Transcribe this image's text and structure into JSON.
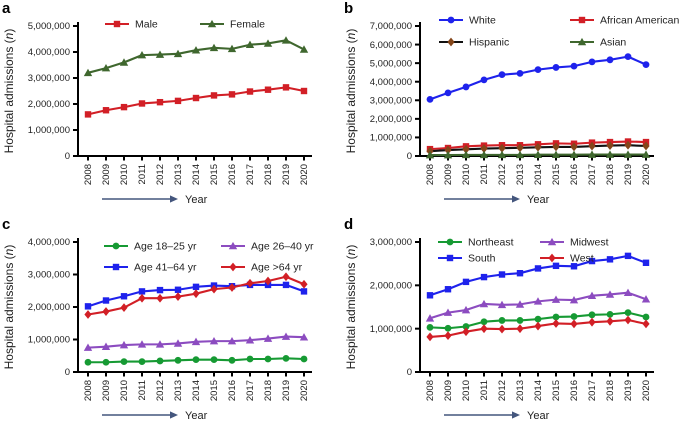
{
  "figure": {
    "ylabel": "Hospital admissions (n)",
    "xlabel": "Year"
  },
  "colors": {
    "red": "#d21f26",
    "blue": "#1e22ec",
    "dark_green": "#3f672e",
    "bright_green": "#169a33",
    "purple": "#8c4cc0",
    "brown": "#84461a",
    "black_line": "#111111",
    "axis": "#000000",
    "arrow": "#44567d",
    "text": "#222222"
  },
  "chart_data": [
    {
      "type": "line",
      "letter": "a",
      "title": "",
      "xlabel": "Year",
      "ylabel": "Hospital admissions (n)",
      "categories": [
        "2008",
        "2009",
        "2010",
        "2011",
        "2012",
        "2013",
        "2014",
        "2015",
        "2016",
        "2017",
        "2018",
        "2019",
        "2020"
      ],
      "ylim": [
        0,
        5000000
      ],
      "ytick_step": 1000000,
      "yticks": [
        0,
        1000000,
        2000000,
        3000000,
        4000000,
        5000000
      ],
      "grid": false,
      "legend_position": "top-inside",
      "legend_rows": [
        [
          "Male",
          "Female"
        ]
      ],
      "series": [
        {
          "name": "Male",
          "marker": "square",
          "color": "#d21f26",
          "values": [
            1600000,
            1760000,
            1880000,
            2020000,
            2070000,
            2120000,
            2230000,
            2330000,
            2370000,
            2480000,
            2550000,
            2640000,
            2500000
          ]
        },
        {
          "name": "Female",
          "marker": "triangle",
          "color": "#3f672e",
          "values": [
            3200000,
            3380000,
            3600000,
            3880000,
            3900000,
            3930000,
            4070000,
            4160000,
            4120000,
            4280000,
            4330000,
            4450000,
            4100000
          ]
        }
      ]
    },
    {
      "type": "line",
      "letter": "b",
      "title": "",
      "xlabel": "Year",
      "ylabel": "Hospital admissions (n)",
      "categories": [
        "2008",
        "2009",
        "2010",
        "2011",
        "2012",
        "2013",
        "2014",
        "2015",
        "2016",
        "2017",
        "2018",
        "2019",
        "2020"
      ],
      "ylim": [
        0,
        7000000
      ],
      "ytick_step": 1000000,
      "yticks": [
        0,
        1000000,
        2000000,
        3000000,
        4000000,
        5000000,
        6000000,
        7000000
      ],
      "grid": false,
      "legend_position": "top-inside",
      "legend_rows": [
        [
          "White",
          "African American"
        ],
        [
          "Hispanic",
          "Asian"
        ]
      ],
      "series": [
        {
          "name": "White",
          "marker": "circle",
          "color": "#1e22ec",
          "values": [
            3050000,
            3400000,
            3720000,
            4100000,
            4380000,
            4450000,
            4650000,
            4770000,
            4840000,
            5070000,
            5180000,
            5350000,
            4920000
          ]
        },
        {
          "name": "African American",
          "marker": "square",
          "color": "#d21f26",
          "values": [
            370000,
            430000,
            520000,
            560000,
            580000,
            580000,
            630000,
            680000,
            660000,
            720000,
            750000,
            780000,
            750000
          ]
        },
        {
          "name": "Hispanic",
          "marker": "diamond",
          "color": "#111111",
          "marker_color": "#84461a",
          "values": [
            260000,
            320000,
            360000,
            400000,
            420000,
            440000,
            470000,
            490000,
            490000,
            530000,
            560000,
            580000,
            540000
          ]
        },
        {
          "name": "Asian",
          "marker": "triangle",
          "color": "#3f672e",
          "values": [
            50000,
            50000,
            60000,
            60000,
            60000,
            60000,
            70000,
            70000,
            70000,
            80000,
            80000,
            80000,
            80000
          ]
        }
      ]
    },
    {
      "type": "line",
      "letter": "c",
      "title": "",
      "xlabel": "Year",
      "ylabel": "Hospital admissions (n)",
      "categories": [
        "2008",
        "2009",
        "2010",
        "2011",
        "2012",
        "2013",
        "2014",
        "2015",
        "2016",
        "2017",
        "2018",
        "2019",
        "2020"
      ],
      "ylim": [
        0,
        4000000
      ],
      "ytick_step": 1000000,
      "yticks": [
        0,
        1000000,
        2000000,
        3000000,
        4000000
      ],
      "grid": false,
      "legend_position": "top-inside",
      "legend_rows": [
        [
          "Age 18–25 yr",
          "Age 26–40 yr"
        ],
        [
          "Age 41–64 yr",
          "Age >64 yr"
        ]
      ],
      "series": [
        {
          "name": "Age 18–25 yr",
          "marker": "circle",
          "color": "#169a33",
          "values": [
            300000,
            300000,
            320000,
            320000,
            340000,
            360000,
            380000,
            380000,
            360000,
            400000,
            400000,
            420000,
            400000
          ]
        },
        {
          "name": "Age 26–40 yr",
          "marker": "triangle",
          "color": "#8c4cc0",
          "values": [
            750000,
            780000,
            830000,
            850000,
            850000,
            880000,
            930000,
            950000,
            950000,
            980000,
            1030000,
            1090000,
            1070000
          ]
        },
        {
          "name": "Age 41–64 yr",
          "marker": "square",
          "color": "#1e22ec",
          "values": [
            2020000,
            2200000,
            2330000,
            2480000,
            2520000,
            2530000,
            2620000,
            2660000,
            2640000,
            2680000,
            2680000,
            2680000,
            2480000
          ]
        },
        {
          "name": "Age >64 yr",
          "marker": "diamond",
          "color": "#d21f26",
          "values": [
            1770000,
            1860000,
            1980000,
            2270000,
            2270000,
            2320000,
            2410000,
            2550000,
            2600000,
            2730000,
            2800000,
            2930000,
            2700000
          ]
        }
      ]
    },
    {
      "type": "line",
      "letter": "d",
      "title": "",
      "xlabel": "Year",
      "ylabel": "Hospital admissions (n)",
      "categories": [
        "2008",
        "2009",
        "2010",
        "2011",
        "2012",
        "2013",
        "2014",
        "2015",
        "2016",
        "2017",
        "2018",
        "2019",
        "2020"
      ],
      "ylim": [
        0,
        3000000
      ],
      "ytick_step": 1000000,
      "yticks": [
        0,
        1000000,
        2000000,
        3000000
      ],
      "grid": false,
      "legend_position": "top-inside",
      "legend_rows": [
        [
          "Northeast",
          "Midwest"
        ],
        [
          "South",
          "West"
        ]
      ],
      "series": [
        {
          "name": "Northeast",
          "marker": "circle",
          "color": "#169a33",
          "values": [
            1030000,
            1010000,
            1050000,
            1160000,
            1190000,
            1190000,
            1220000,
            1270000,
            1280000,
            1320000,
            1330000,
            1370000,
            1270000
          ]
        },
        {
          "name": "South",
          "marker": "square",
          "color": "#1e22ec",
          "values": [
            1770000,
            1910000,
            2080000,
            2190000,
            2250000,
            2280000,
            2390000,
            2450000,
            2440000,
            2560000,
            2600000,
            2680000,
            2520000
          ]
        },
        {
          "name": "Midwest",
          "marker": "triangle",
          "color": "#8c4cc0",
          "values": [
            1240000,
            1370000,
            1430000,
            1570000,
            1550000,
            1560000,
            1630000,
            1670000,
            1660000,
            1760000,
            1790000,
            1830000,
            1680000
          ]
        },
        {
          "name": "West",
          "marker": "diamond",
          "color": "#d21f26",
          "values": [
            810000,
            840000,
            930000,
            1000000,
            990000,
            1000000,
            1060000,
            1120000,
            1110000,
            1150000,
            1170000,
            1200000,
            1110000
          ]
        }
      ]
    }
  ]
}
